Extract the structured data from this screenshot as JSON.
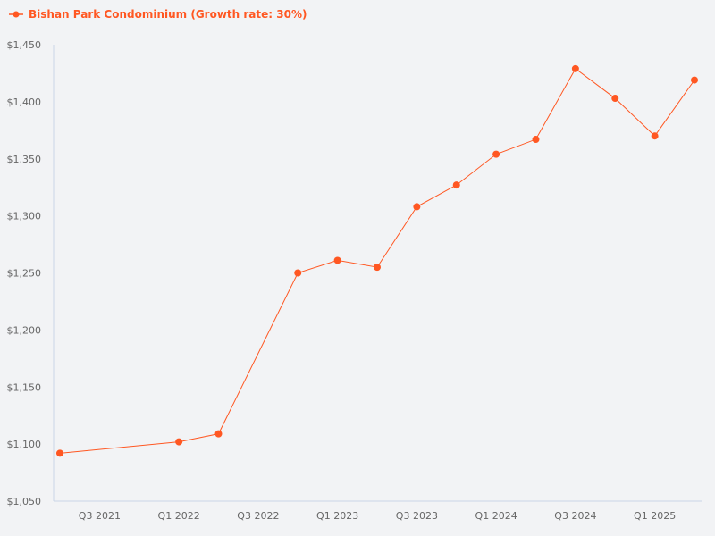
{
  "chart_data": {
    "type": "line",
    "series": [
      {
        "name": "Bishan Park Condominium (Growth rate: 30%)",
        "color": "#ff5722",
        "points": [
          {
            "x": "Q2 2021",
            "y": 1092
          },
          {
            "x": "Q1 2022",
            "y": 1102
          },
          {
            "x": "Q2 2022",
            "y": 1109
          },
          {
            "x": "Q4 2022",
            "y": 1250
          },
          {
            "x": "Q1 2023",
            "y": 1261
          },
          {
            "x": "Q2 2023",
            "y": 1255
          },
          {
            "x": "Q3 2023",
            "y": 1308
          },
          {
            "x": "Q4 2023",
            "y": 1327
          },
          {
            "x": "Q1 2024",
            "y": 1354
          },
          {
            "x": "Q2 2024",
            "y": 1367
          },
          {
            "x": "Q3 2024",
            "y": 1429
          },
          {
            "x": "Q4 2024",
            "y": 1403
          },
          {
            "x": "Q1 2025",
            "y": 1370
          },
          {
            "x": "Q2 2025",
            "y": 1419
          }
        ]
      }
    ],
    "x_ticks": [
      "Q3 2021",
      "Q1 2022",
      "Q3 2022",
      "Q1 2023",
      "Q3 2023",
      "Q1 2024",
      "Q3 2024",
      "Q1 2025"
    ],
    "y_ticks": [
      "$1,050",
      "$1,100",
      "$1,150",
      "$1,200",
      "$1,250",
      "$1,300",
      "$1,350",
      "$1,400",
      "$1,450"
    ],
    "ylim": [
      1050,
      1450
    ],
    "x_domain": [
      "Q2 2021",
      "Q2 2025"
    ],
    "grid": false,
    "legend_position": "top-left",
    "axis_color": "#c9d6e6",
    "text_color": "#666666"
  }
}
